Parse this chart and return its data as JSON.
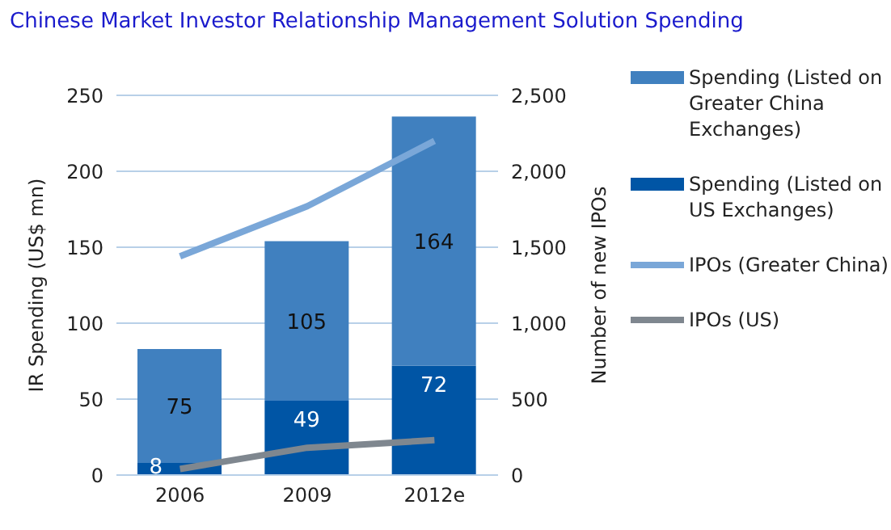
{
  "chart_data": {
    "type": "bar",
    "title": "Chinese Market Investor Relationship Management Solution Spending",
    "categories": [
      "2006",
      "2009",
      "2012e"
    ],
    "stacked": true,
    "ylabel": "IR Spending (US$ mn)",
    "y2label": "Number of new IPOs",
    "ylim": [
      0,
      250
    ],
    "yticks": [
      0,
      50,
      100,
      150,
      200,
      250
    ],
    "y2lim": [
      0,
      2500
    ],
    "y2ticks": [
      {
        "value": 0,
        "label": "0"
      },
      {
        "value": 500,
        "label": "500"
      },
      {
        "value": 1000,
        "label": "1,000"
      },
      {
        "value": 1500,
        "label": "1,500"
      },
      {
        "value": 2000,
        "label": "2,000"
      },
      {
        "value": 2500,
        "label": "2,500"
      }
    ],
    "grid": "y",
    "legend": "right",
    "series": [
      {
        "name": "Spending (Listed on US Exchanges)",
        "color": "#0055a5",
        "values": [
          8,
          49,
          72
        ],
        "value_labels": [
          "8",
          "49",
          "72"
        ]
      },
      {
        "name": "Spending (Listed on Greater China Exchanges)",
        "color": "#4080bf",
        "values": [
          75,
          105,
          164
        ],
        "value_labels": [
          "75",
          "105",
          "164"
        ]
      },
      {
        "name": "IPOs (Greater China)",
        "type": "line",
        "axis": "y2",
        "color": "#7aa7d8",
        "values": [
          1440,
          1770,
          2200
        ]
      },
      {
        "name": "IPOs (US)",
        "type": "line",
        "axis": "y2",
        "color": "#7f878f",
        "values": [
          40,
          180,
          230
        ]
      }
    ]
  }
}
